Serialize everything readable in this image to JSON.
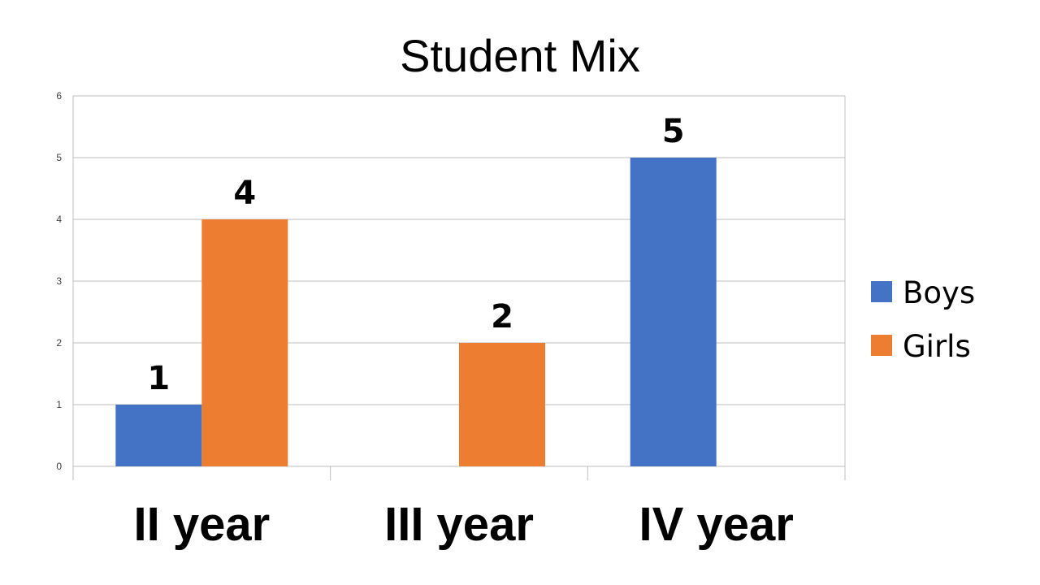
{
  "chart_data": {
    "type": "bar",
    "title": "Student Mix",
    "categories": [
      "II year",
      "III year",
      "IV year"
    ],
    "series": [
      {
        "name": "Boys",
        "color": "#4472c4",
        "values": [
          1,
          null,
          5
        ],
        "labels": [
          "1",
          "",
          "5"
        ]
      },
      {
        "name": "Girls",
        "color": "#ed7d31",
        "values": [
          4,
          2,
          null
        ],
        "labels": [
          "4",
          "2",
          ""
        ]
      }
    ],
    "ylim": [
      0,
      6
    ],
    "yticks": [
      "0",
      "1",
      "2",
      "3",
      "4",
      "5",
      "6"
    ],
    "grid": true,
    "legend_position": "right"
  }
}
